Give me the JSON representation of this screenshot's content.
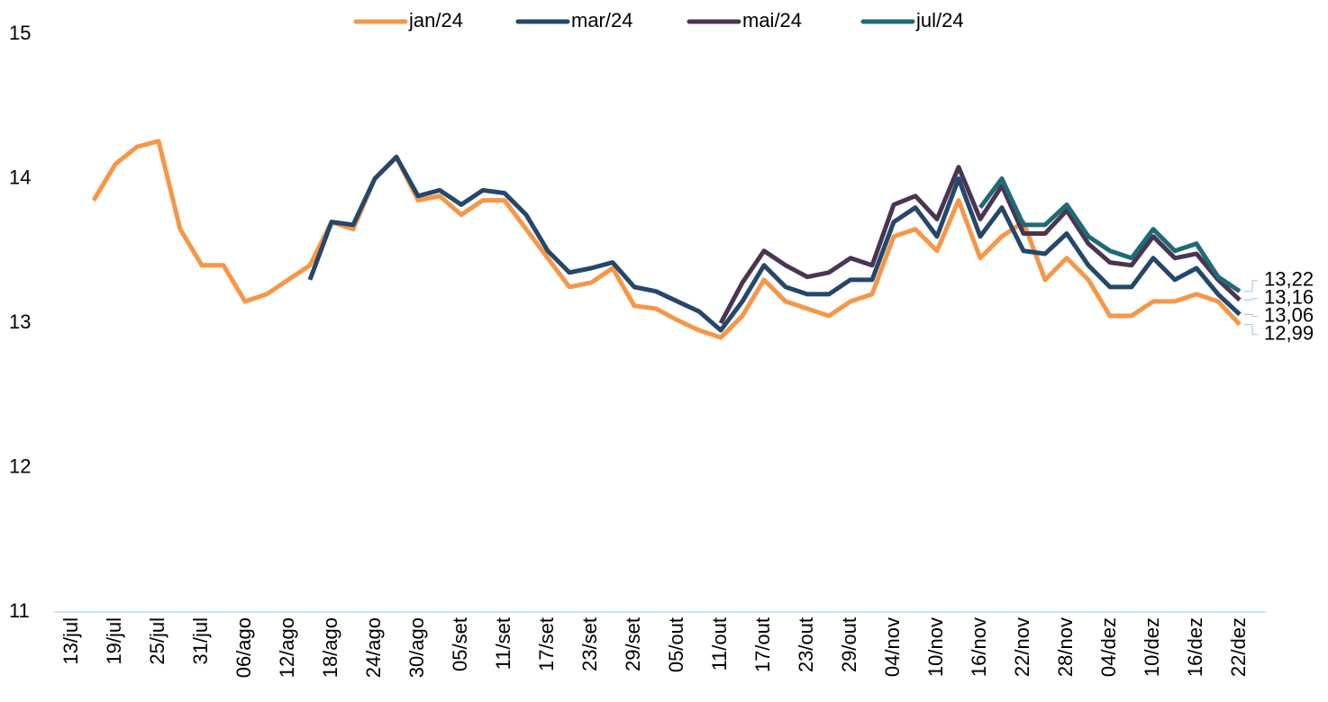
{
  "chart_data": {
    "type": "line",
    "categories": [
      "13/jul",
      null,
      "19/jul",
      null,
      "25/jul",
      null,
      "31/jul",
      null,
      "06/ago",
      null,
      "12/ago",
      null,
      "18/ago",
      null,
      "24/ago",
      null,
      "30/ago",
      null,
      "05/set",
      null,
      "11/set",
      null,
      "17/set",
      null,
      "23/set",
      null,
      "29/set",
      null,
      "05/out",
      null,
      "11/out",
      null,
      "17/out",
      null,
      "23/out",
      null,
      "29/out",
      null,
      "04/nov",
      null,
      "10/nov",
      null,
      "16/nov",
      null,
      "22/nov",
      null,
      "28/nov",
      null,
      "04/dez",
      null,
      "10/dez",
      null,
      "16/dez",
      null,
      "22/dez"
    ],
    "series": [
      {
        "name": "jan/24",
        "color": "#f79646",
        "values": [
          null,
          13.85,
          14.1,
          14.22,
          14.26,
          13.65,
          13.4,
          13.4,
          13.15,
          13.2,
          13.3,
          13.4,
          13.7,
          13.65,
          14.0,
          14.15,
          13.85,
          13.88,
          13.75,
          13.85,
          13.85,
          13.65,
          13.45,
          13.25,
          13.28,
          13.38,
          13.12,
          13.1,
          13.02,
          12.95,
          12.9,
          13.05,
          13.3,
          13.15,
          13.1,
          13.05,
          13.15,
          13.2,
          13.6,
          13.65,
          13.5,
          13.85,
          13.45,
          13.6,
          13.7,
          13.3,
          13.45,
          13.3,
          13.05,
          13.05,
          13.15,
          13.15,
          13.2,
          13.15,
          12.99
        ]
      },
      {
        "name": "mar/24",
        "color": "#24476b",
        "values": [
          null,
          null,
          null,
          null,
          null,
          null,
          null,
          null,
          null,
          null,
          null,
          13.3,
          13.7,
          13.68,
          14.0,
          14.15,
          13.88,
          13.92,
          13.82,
          13.92,
          13.9,
          13.75,
          13.5,
          13.35,
          13.38,
          13.42,
          13.25,
          13.22,
          13.15,
          13.08,
          12.95,
          13.15,
          13.4,
          13.25,
          13.2,
          13.2,
          13.3,
          13.3,
          13.7,
          13.8,
          13.6,
          14.0,
          13.6,
          13.8,
          13.5,
          13.48,
          13.62,
          13.4,
          13.25,
          13.25,
          13.45,
          13.3,
          13.38,
          13.2,
          13.06
        ]
      },
      {
        "name": "mai/24",
        "color": "#4b3452",
        "values": [
          null,
          null,
          null,
          null,
          null,
          null,
          null,
          null,
          null,
          null,
          null,
          null,
          null,
          null,
          null,
          null,
          null,
          null,
          null,
          null,
          null,
          null,
          null,
          null,
          null,
          null,
          null,
          null,
          null,
          null,
          13.0,
          13.28,
          13.5,
          13.4,
          13.32,
          13.35,
          13.45,
          13.4,
          13.82,
          13.88,
          13.72,
          14.08,
          13.72,
          13.95,
          13.62,
          13.62,
          13.78,
          13.55,
          13.42,
          13.4,
          13.6,
          13.45,
          13.48,
          13.3,
          13.16
        ]
      },
      {
        "name": "jul/24",
        "color": "#1f6b75",
        "values": [
          null,
          null,
          null,
          null,
          null,
          null,
          null,
          null,
          null,
          null,
          null,
          null,
          null,
          null,
          null,
          null,
          null,
          null,
          null,
          null,
          null,
          null,
          null,
          null,
          null,
          null,
          null,
          null,
          null,
          null,
          null,
          null,
          null,
          null,
          null,
          null,
          null,
          null,
          null,
          null,
          null,
          null,
          13.8,
          14.0,
          13.68,
          13.68,
          13.82,
          13.6,
          13.5,
          13.45,
          13.65,
          13.5,
          13.55,
          13.32,
          13.22
        ]
      }
    ],
    "annotations": [
      {
        "value": 13.22,
        "text": "13,22"
      },
      {
        "value": 13.16,
        "text": "13,16"
      },
      {
        "value": 13.06,
        "text": "13,06"
      },
      {
        "value": 12.99,
        "text": "12,99"
      }
    ],
    "ylim": [
      11,
      15
    ],
    "yticks": [
      11,
      12,
      13,
      14,
      15
    ],
    "grid": false,
    "legend": "top"
  }
}
